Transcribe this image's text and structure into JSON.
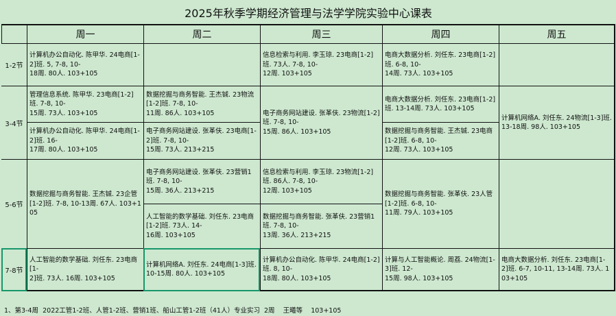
{
  "title": "2025年秋季学期经济管理与法学学院实验中心课表",
  "days": [
    "周一",
    "周二",
    "周三",
    "周四",
    "周五"
  ],
  "periods": [
    "1-2节",
    "3-4节",
    "5-6节",
    "7-8节"
  ],
  "cells": {
    "mon_12": "计算机办公自动化. 陈甲华. 24电商[1-2]班. 5, 7-8, 10-\n18周. 80人. 103+105",
    "wed_12": "信息检索与利用. 李玉琼. 23电商[1-2]班. 73人. 7-8, 10-\n12周. 103+105",
    "thu_12": "电商大数据分析. 刘任东. 23电商[1-2]班. 6-8, 10-\n14周. 73人. 103+105",
    "mon_34a": "管理信息系统. 陈甲华. 23电商[1-2]班. 7-8, 10-\n15周. 73人. 103+105",
    "mon_34b": "计算机办公自动化. 陈甲华. 24电商[1-2]班. 16-\n17周. 80人. 103+105",
    "tue_34a": "数据挖掘与商务智能. 王杰铖. 23物流[1-2]班. 7-8, 10-\n11周. 86人. 103+105",
    "tue_34b": "电子商务网站建设. 张革伕. 23电商[1-2]班. 7-8, 10-\n15周. 73人. 213+215",
    "wed_34": "电子商务网站建设. 张革伕. 23物流[1-2]班. 7-8, 10-\n15周. 86人. 103+105",
    "thu_34a": "电商大数据分析. 刘任东. 23电商[1-2]班. 13-14周. 73人. 103+105",
    "thu_34b": "数据挖掘与商务智能. 王杰铖. 23电商[1-2]班. 6-8, 10-\n12周. 73人. 103+105",
    "fri_34": "计算机网络A. 刘任东. 24物流[1-3]班. 13-18周. 98人. 103+105",
    "mon_56": "数据挖掘与商务智能. 王杰铖. 23企管[1-2]班. 7-8, 10-13周.  67人. 103+105",
    "tue_56a": "电子商务网站建设. 张革伕. 23营销1班. 7-8, 10-\n15周. 36人. 213+215",
    "tue_56b": "人工智能的数学基础. 刘任东. 23电商[1-2]班. 73人. 14-\n16周. 103+105",
    "wed_56a": "信息检索与利用. 李玉琼. 23物流[1-2]班. 86人. 7-8, 10-\n12周. 103+105",
    "wed_56b": "数据挖掘与商务智能. 张革伕. 23营销1班. 7-8, 10-\n13周. 36人. 213+215",
    "thu_56": "数据挖掘与商务智能. 张革伕. 23人管[1-2]班. 6-8, 10-\n11周. 79人. 103+105",
    "mon_78": "人工智能的数学基础. 刘任东. 23电商[1-\n2]班. 73人. 16周. 103+105",
    "tue_78": "计算机网络A. 刘任东. 24电商[1-3]班. 10-15周. 80人. 103+105",
    "wed_78": "计算机办公自动化. 陈甲华. 24电商[1-2]班. 8, 10-\n18周. 80人. 103+105",
    "thu_78": "计算与人工智能概论. 周荔. 24物流[1-3]班. 12-\n15周. 98人. 103+105",
    "fri_78": "电商大数据分析. 刘任东. 23电商[1-2]班. 6-7, 10-11, 13-14周. 73人. 103+105"
  },
  "footnote": "1、第3-4周  2022工管1-2班、人管1-2班、营销1班、船山工管1-2班（41人）专业实习  2周    王曦等    103+105"
}
